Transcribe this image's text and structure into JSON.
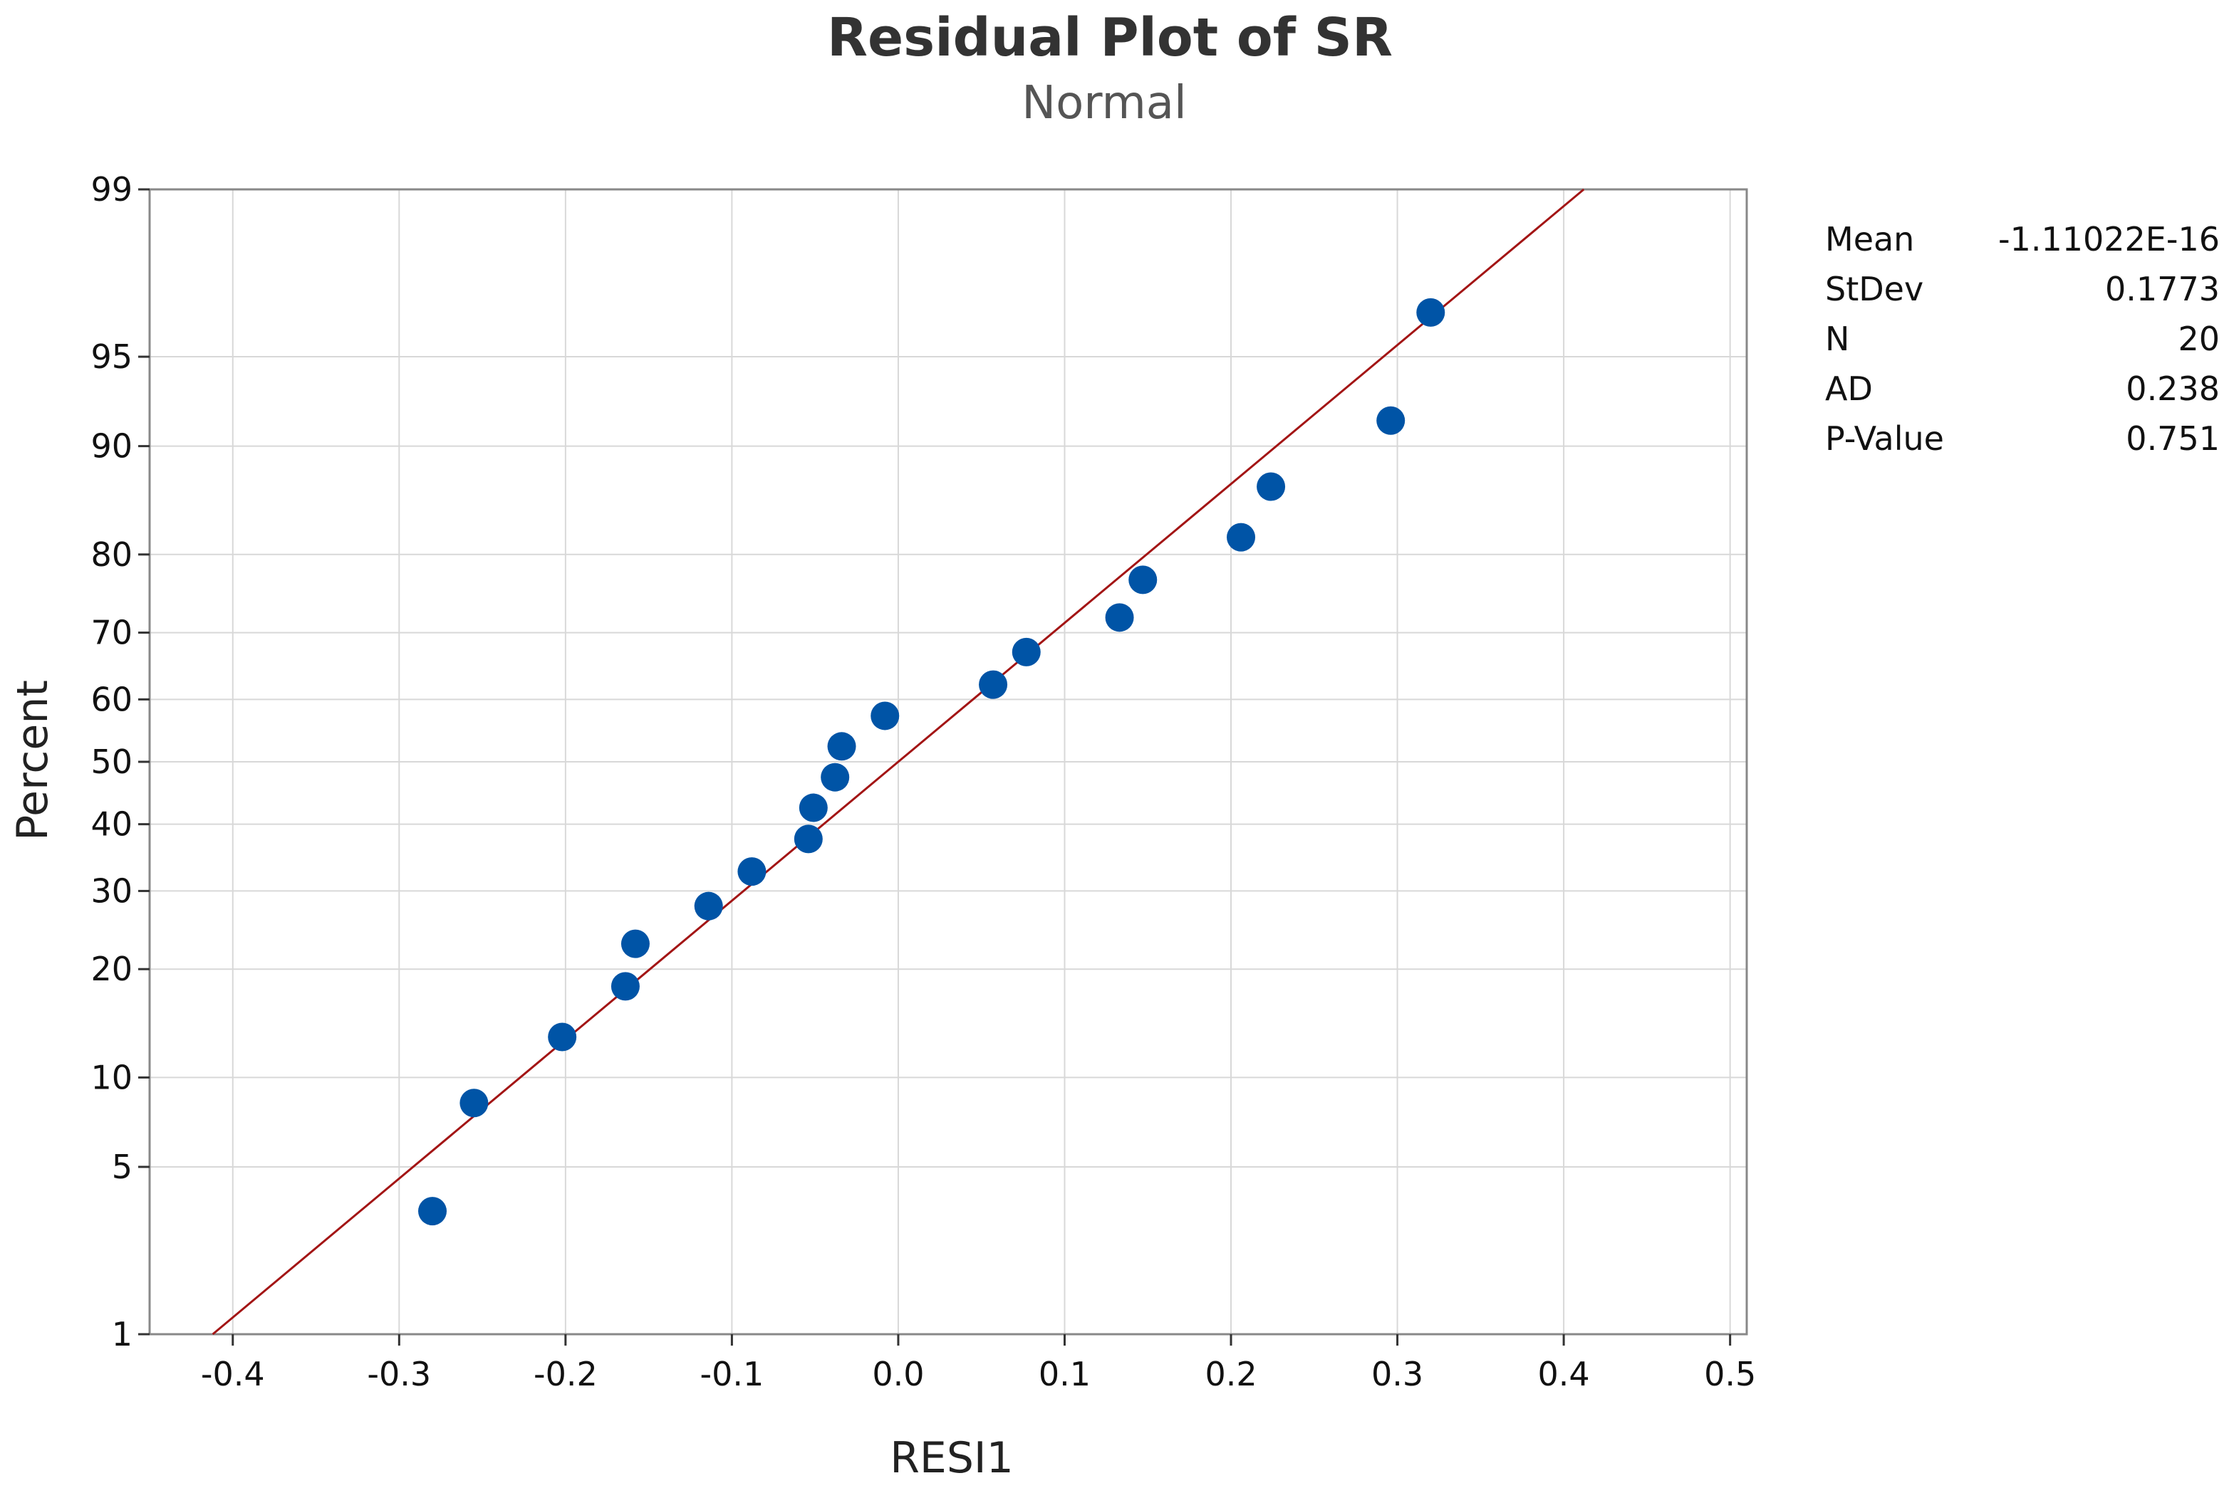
{
  "chart_data": {
    "type": "scatter",
    "title": "Residual Plot of SR",
    "subtitle": "Normal",
    "xlabel": "RESI1",
    "ylabel": "Percent",
    "xlim": [
      -0.45,
      0.51
    ],
    "ylim": [
      1,
      99
    ],
    "y_scale": "normal-probability",
    "grid": true,
    "x_ticks": [
      -0.4,
      -0.3,
      -0.2,
      -0.1,
      0.0,
      0.1,
      0.2,
      0.3,
      0.4,
      0.5
    ],
    "x_tick_labels": [
      "-0.4",
      "-0.3",
      "-0.2",
      "-0.1",
      "0.0",
      "0.1",
      "0.2",
      "0.3",
      "0.4",
      "0.5"
    ],
    "y_ticks": [
      1,
      5,
      10,
      20,
      30,
      40,
      50,
      60,
      70,
      80,
      90,
      95,
      99
    ],
    "y_tick_labels": [
      "1",
      "5",
      "10",
      "20",
      "30",
      "40",
      "50",
      "60",
      "70",
      "80",
      "90",
      "95",
      "99"
    ],
    "points": {
      "x": [
        -0.28,
        -0.255,
        -0.202,
        -0.164,
        -0.158,
        -0.114,
        -0.088,
        -0.054,
        -0.051,
        -0.038,
        -0.034,
        -0.008,
        0.057,
        0.077,
        0.133,
        0.147,
        0.206,
        0.224,
        0.296,
        0.32
      ],
      "y": [
        3.4,
        8.3,
        13.2,
        18.1,
        23.0,
        27.9,
        32.8,
        37.7,
        42.6,
        47.5,
        52.5,
        57.4,
        62.3,
        67.2,
        72.1,
        77.0,
        81.9,
        86.8,
        91.7,
        96.6
      ],
      "color": "#0054a6"
    },
    "fit_line": {
      "color": "#a31515",
      "mean": 0.0,
      "stdev": 0.1773
    },
    "stats": [
      {
        "label": "Mean",
        "value": "-1.11022E-16"
      },
      {
        "label": "StDev",
        "value": "0.1773"
      },
      {
        "label": "N",
        "value": "20"
      },
      {
        "label": "AD",
        "value": "0.238"
      },
      {
        "label": "P-Value",
        "value": "0.751"
      }
    ],
    "colors": {
      "grid": "#d8d8d8",
      "frame": "#888888"
    }
  }
}
